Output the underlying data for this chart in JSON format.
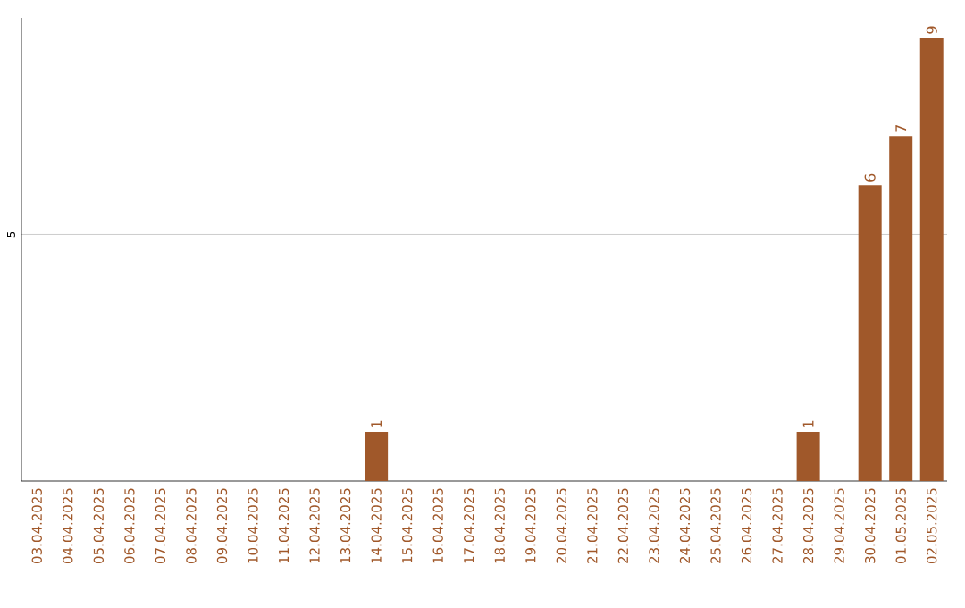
{
  "chart_data": {
    "type": "bar",
    "categories": [
      "03.04.2025",
      "04.04.2025",
      "05.04.2025",
      "06.04.2025",
      "07.04.2025",
      "08.04.2025",
      "09.04.2025",
      "10.04.2025",
      "11.04.2025",
      "12.04.2025",
      "13.04.2025",
      "14.04.2025",
      "15.04.2025",
      "16.04.2025",
      "17.04.2025",
      "18.04.2025",
      "19.04.2025",
      "20.04.2025",
      "21.04.2025",
      "22.04.2025",
      "23.04.2025",
      "24.04.2025",
      "25.04.2025",
      "26.04.2025",
      "27.04.2025",
      "28.04.2025",
      "29.04.2025",
      "30.04.2025",
      "01.05.2025",
      "02.05.2025"
    ],
    "values": [
      0,
      0,
      0,
      0,
      0,
      0,
      0,
      0,
      0,
      0,
      0,
      1,
      0,
      0,
      0,
      0,
      0,
      0,
      0,
      0,
      0,
      0,
      0,
      0,
      0,
      1,
      0,
      6,
      7,
      9
    ],
    "value_labels": [
      null,
      null,
      null,
      null,
      null,
      null,
      null,
      null,
      null,
      null,
      null,
      "1",
      null,
      null,
      null,
      null,
      null,
      null,
      null,
      null,
      null,
      null,
      null,
      null,
      null,
      "1",
      null,
      "6",
      "7",
      "9"
    ],
    "color": "#a0582a",
    "ylim": [
      0,
      9.4
    ],
    "yticks": [
      5
    ],
    "grid": "y"
  }
}
